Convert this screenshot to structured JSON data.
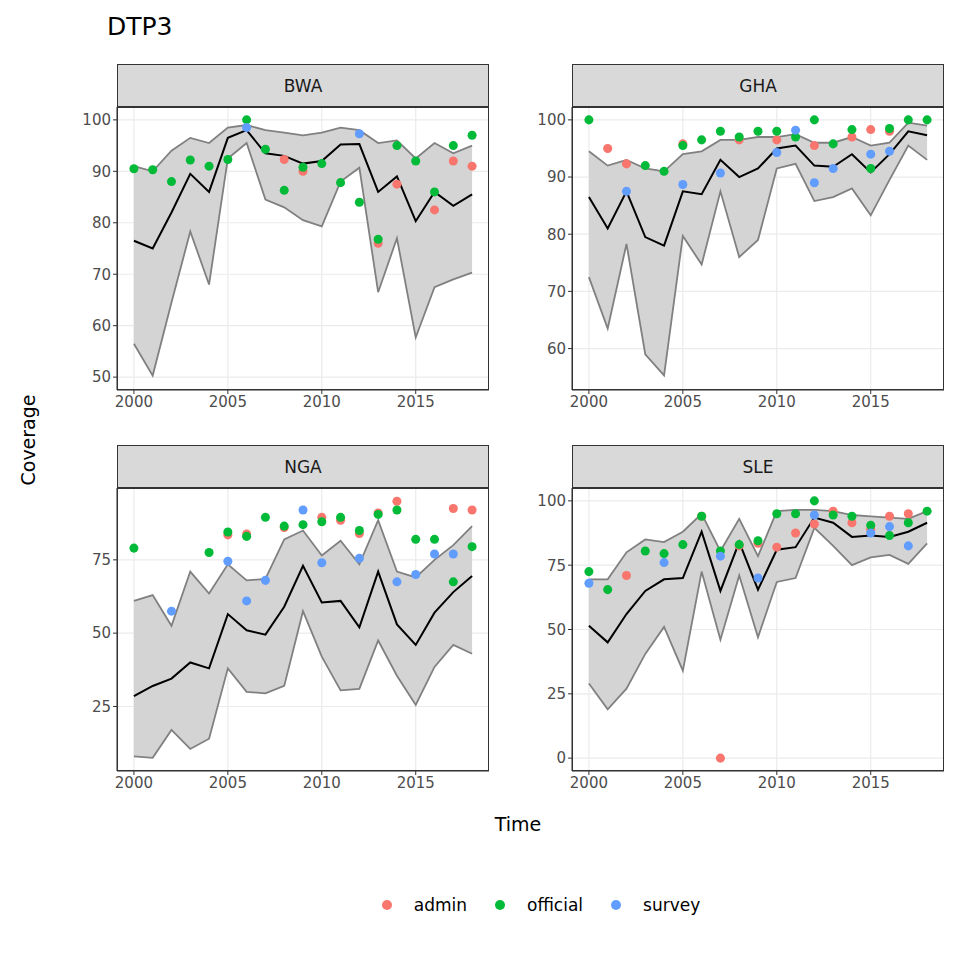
{
  "chart_data": {
    "type": "line",
    "title": "DTP3",
    "x_label": "Time",
    "y_label": "Coverage",
    "grid": true,
    "legend": "bottom",
    "panels": [
      {
        "title": "BWA",
        "x": [
          2000,
          2001,
          2002,
          2003,
          2004,
          2005,
          2006,
          2007,
          2008,
          2009,
          2010,
          2011,
          2012,
          2013,
          2014,
          2015,
          2016,
          2017,
          2018
        ],
        "xlim": [
          1999.1,
          2018.9
        ],
        "xticks": [
          2000,
          2005,
          2010,
          2015
        ],
        "ylim": [
          47.5,
          102.5
        ],
        "yticks": [
          50,
          60,
          70,
          80,
          90,
          100
        ],
        "upper": [
          91,
          90,
          94,
          96.5,
          95.5,
          98.5,
          99,
          98,
          97.5,
          97,
          97.5,
          98.5,
          98,
          95.5,
          96,
          92.5,
          95.5,
          93.5,
          95
        ],
        "median": [
          76.5,
          75,
          82,
          89.5,
          86,
          96.5,
          98,
          93.5,
          93,
          91.5,
          92,
          95.2,
          95.3,
          86,
          89,
          80.3,
          86,
          83.3,
          85.5
        ],
        "lower": [
          56.5,
          50.3,
          64.5,
          78.3,
          68,
          92.5,
          95.5,
          84.5,
          83,
          80.5,
          79.3,
          88,
          90.7,
          66.5,
          77,
          57.7,
          67.5,
          69,
          70.3
        ],
        "series": [
          {
            "name": "admin",
            "color": "#F8766D",
            "type": "scatter",
            "values": [
              null,
              null,
              null,
              null,
              null,
              null,
              null,
              null,
              92.3,
              90,
              null,
              null,
              null,
              76,
              87.5,
              null,
              82.5,
              92,
              91
            ]
          },
          {
            "name": "official",
            "color": "#00BA38",
            "type": "scatter",
            "values": [
              90.5,
              90.3,
              88,
              92.2,
              91,
              92.3,
              100,
              94.3,
              86.3,
              90.8,
              91.5,
              87.8,
              84,
              76.8,
              95,
              92,
              86,
              95,
              97
            ]
          },
          {
            "name": "survey",
            "color": "#619CFF",
            "type": "scatter",
            "values": [
              null,
              null,
              null,
              null,
              null,
              null,
              98.5,
              null,
              null,
              null,
              null,
              null,
              97.3,
              null,
              null,
              null,
              null,
              null,
              null
            ]
          }
        ]
      },
      {
        "title": "GHA",
        "x": [
          2000,
          2001,
          2002,
          2003,
          2004,
          2005,
          2006,
          2007,
          2008,
          2009,
          2010,
          2011,
          2012,
          2013,
          2014,
          2015,
          2016,
          2017,
          2018
        ],
        "xlim": [
          1999.1,
          2018.9
        ],
        "xticks": [
          2000,
          2005,
          2010,
          2015
        ],
        "ylim": [
          52.75,
          102.25
        ],
        "yticks": [
          60,
          70,
          80,
          90,
          100
        ],
        "upper": [
          94.5,
          92,
          93,
          91.5,
          91,
          94,
          94.5,
          96.5,
          96.5,
          97,
          97,
          97.5,
          96,
          96,
          97,
          95.5,
          96,
          99.5,
          99
        ],
        "median": [
          86.5,
          81,
          87.5,
          79.5,
          78,
          87.5,
          87,
          93,
          90,
          91.5,
          95,
          95.5,
          92,
          91.8,
          94,
          90.8,
          94,
          98,
          97.3
        ],
        "lower": [
          72.5,
          63.5,
          78.3,
          59,
          55.3,
          79.7,
          74.7,
          87.5,
          76,
          79,
          91.5,
          92.3,
          85.8,
          86.5,
          88,
          83.3,
          89.5,
          95.5,
          93
        ],
        "series": [
          {
            "name": "admin",
            "color": "#F8766D",
            "type": "scatter",
            "values": [
              null,
              95,
              92.3,
              null,
              null,
              95.8,
              null,
              null,
              96.5,
              null,
              96.5,
              null,
              95.5,
              null,
              97,
              98.3,
              98,
              null,
              null
            ]
          },
          {
            "name": "official",
            "color": "#00BA38",
            "type": "scatter",
            "values": [
              100,
              null,
              null,
              92,
              91,
              95.5,
              96.5,
              98,
              97,
              98,
              98,
              97,
              100,
              95.8,
              98.3,
              91.5,
              98.5,
              100,
              100
            ]
          },
          {
            "name": "survey",
            "color": "#619CFF",
            "type": "scatter",
            "values": [
              null,
              null,
              87.5,
              null,
              null,
              88.7,
              null,
              90.7,
              null,
              null,
              94.3,
              98.2,
              89,
              91.5,
              null,
              94,
              94.5,
              null,
              null
            ]
          }
        ]
      },
      {
        "title": "NGA",
        "x": [
          2000,
          2001,
          2002,
          2003,
          2004,
          2005,
          2006,
          2007,
          2008,
          2009,
          2010,
          2011,
          2012,
          2013,
          2014,
          2015,
          2016,
          2017,
          2018
        ],
        "xlim": [
          1999.1,
          2018.9
        ],
        "xticks": [
          2000,
          2005,
          2010,
          2015
        ],
        "ylim": [
          3,
          99.5
        ],
        "yticks": [
          25,
          50,
          75
        ],
        "upper": [
          61,
          63,
          52.5,
          71,
          63.5,
          73.5,
          68,
          68.5,
          82,
          85,
          76.5,
          81.5,
          73.5,
          88.5,
          71,
          69,
          75,
          80,
          86.5
        ],
        "median": [
          28.5,
          32,
          34.5,
          40,
          38,
          56.5,
          51,
          49.5,
          59,
          73,
          60.5,
          61,
          52,
          71,
          53,
          46,
          57,
          64,
          69.5
        ],
        "lower": [
          8,
          7.5,
          17,
          10.5,
          14,
          38,
          30,
          29.5,
          32,
          57.5,
          42,
          30.5,
          31,
          47.5,
          35.5,
          25.5,
          38.5,
          46,
          43
        ],
        "series": [
          {
            "name": "admin",
            "color": "#F8766D",
            "type": "scatter",
            "values": [
              null,
              null,
              null,
              null,
              null,
              83.5,
              83.8,
              null,
              86,
              null,
              89.5,
              88.5,
              84,
              91,
              95,
              null,
              null,
              92.5,
              92
            ]
          },
          {
            "name": "official",
            "color": "#00BA38",
            "type": "scatter",
            "values": [
              79,
              null,
              null,
              null,
              77.5,
              84.5,
              83,
              89.5,
              86.5,
              87,
              88,
              89.5,
              85,
              90.5,
              92,
              82,
              82,
              67.5,
              79.5
            ]
          },
          {
            "name": "survey",
            "color": "#619CFF",
            "type": "scatter",
            "values": [
              null,
              null,
              57.5,
              null,
              null,
              74.5,
              61,
              68,
              null,
              92,
              74,
              null,
              75.5,
              null,
              67.5,
              70,
              77,
              77,
              null
            ]
          }
        ]
      },
      {
        "title": "SLE",
        "x": [
          2000,
          2001,
          2002,
          2003,
          2004,
          2005,
          2006,
          2007,
          2008,
          2009,
          2010,
          2011,
          2012,
          2013,
          2014,
          2015,
          2016,
          2017,
          2018
        ],
        "xlim": [
          1999.1,
          2018.9
        ],
        "xticks": [
          2000,
          2005,
          2010,
          2015
        ],
        "ylim": [
          -5,
          105
        ],
        "yticks": [
          0,
          25,
          50,
          75,
          100
        ],
        "upper": [
          69.5,
          69.5,
          80,
          85,
          84,
          88,
          95,
          80.5,
          93,
          78.5,
          96,
          96.5,
          96.5,
          96,
          94.5,
          94,
          93.5,
          93,
          96
        ],
        "median": [
          51.5,
          45,
          56,
          65,
          69.5,
          70,
          88,
          65,
          84,
          65.5,
          81,
          82,
          93.5,
          91.5,
          86,
          86.5,
          86,
          88,
          91.5
        ],
        "lower": [
          29,
          19,
          27,
          40.5,
          51,
          34,
          72.5,
          46,
          71,
          47,
          68.5,
          70,
          89.5,
          82.5,
          75,
          78,
          79,
          75.5,
          83.5
        ],
        "series": [
          {
            "name": "admin",
            "color": "#F8766D",
            "type": "scatter",
            "values": [
              null,
              null,
              71,
              null,
              null,
              null,
              94,
              0,
              82.5,
              83.5,
              82,
              87.5,
              91,
              96,
              91.5,
              89,
              94,
              95,
              null
            ]
          },
          {
            "name": "official",
            "color": "#00BA38",
            "type": "scatter",
            "values": [
              72.5,
              65.5,
              null,
              80.5,
              79.5,
              83,
              94,
              80.5,
              83,
              84.5,
              95,
              95,
              100,
              94.5,
              94,
              90.5,
              86.5,
              91.5,
              96
            ]
          },
          {
            "name": "survey",
            "color": "#619CFF",
            "type": "scatter",
            "values": [
              68,
              null,
              null,
              null,
              76,
              null,
              null,
              78.5,
              null,
              70,
              null,
              null,
              94.5,
              null,
              null,
              87.5,
              90,
              82.5,
              null
            ]
          }
        ]
      }
    ]
  }
}
